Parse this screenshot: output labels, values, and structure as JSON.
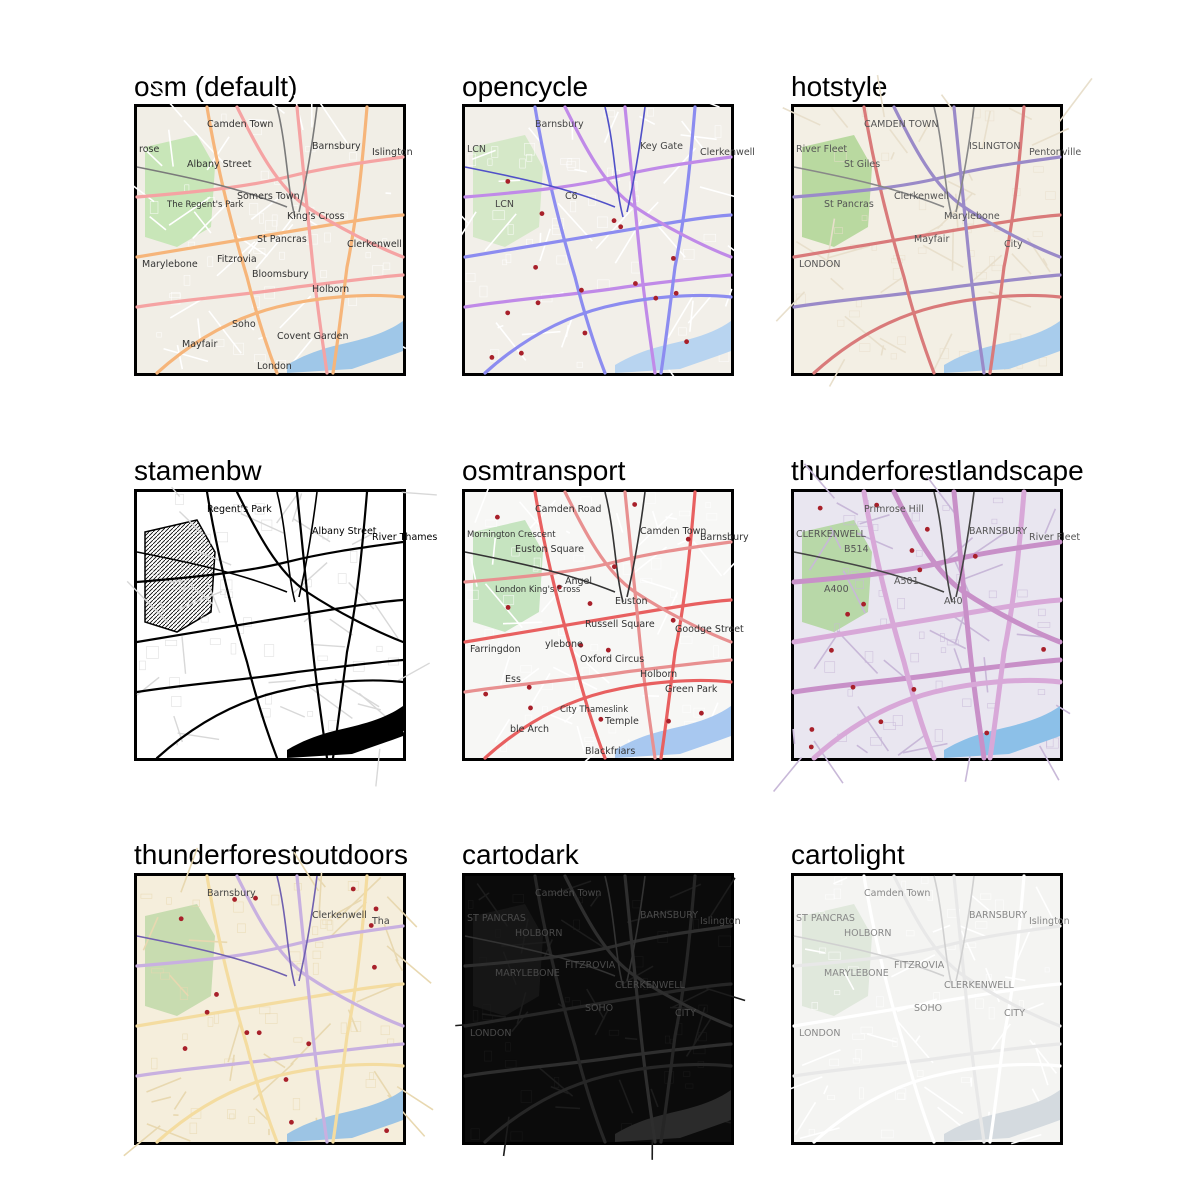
{
  "panels": [
    {
      "id": "osm",
      "title": "osm (default)",
      "bg": "#f1eee6",
      "minor": "#ffffff",
      "major": "#f6b57a",
      "major2": "#f5a3a3",
      "rail": "#7a7a7a",
      "park": "#c8e6b8",
      "water": "#9fc7e8",
      "label": "#333333",
      "labels": [
        "Camden Town",
        "Barnsbury",
        "Islington",
        "rose",
        "The Regent's Park",
        "Somers Town",
        "King's Cross",
        "Albany Street",
        "St Pancras",
        "Clerkenwell",
        "Marylebone",
        "Fitzrovia",
        "Bloomsbury",
        "Holborn",
        "Soho",
        "Mayfair",
        "Covent Garden",
        "London"
      ]
    },
    {
      "id": "opencycle",
      "title": "opencycle",
      "bg": "#f2efe9",
      "minor": "#ffffff",
      "major": "#8c8cf0",
      "major2": "#c08ae8",
      "rail": "#5050c8",
      "park": "#d5e8c8",
      "water": "#b8d4f0",
      "label": "#444444",
      "labels": [
        "Barnsbury",
        "Key Gate",
        "Clerkenwell",
        "LCN",
        "LCN",
        "C6"
      ]
    },
    {
      "id": "hotstyle",
      "title": "hotstyle",
      "bg": "#f3efe4",
      "minor": "#e8dfcc",
      "major": "#d97a7a",
      "major2": "#9a8ac8",
      "rail": "#888888",
      "park": "#b9d9a0",
      "water": "#a8ccec",
      "label": "#555555",
      "labels": [
        "CAMDEN TOWN",
        "ISLINGTON",
        "Pentonville",
        "River Fleet",
        "St Pancras",
        "Clerkenwell",
        "Marylebone",
        "St Giles",
        "Mayfair",
        "City",
        "LONDON"
      ]
    },
    {
      "id": "stamenbw",
      "title": "stamenbw",
      "bg": "#ffffff",
      "minor": "#d8d8d8",
      "major": "#000000",
      "major2": "#000000",
      "rail": "#000000",
      "park": "#ffffff",
      "water": "#000000",
      "label": "#000000",
      "labels": [
        "Regent's Park",
        "Albany Street",
        "River Thames"
      ]
    },
    {
      "id": "osmtransport",
      "title": "osmtransport",
      "bg": "#f7f7f5",
      "minor": "#ffffff",
      "major": "#e86060",
      "major2": "#e89090",
      "rail": "#333333",
      "park": "#c6e4c0",
      "water": "#a8c8f0",
      "label": "#333333",
      "labels": [
        "Camden Road",
        "Camden Town",
        "Barnsbury",
        "Mornington Crescent",
        "London King's Cross",
        "Angel",
        "Euston",
        "Euston Square",
        "Russell Square",
        "Goodge Street",
        "Farringdon",
        "ylebone",
        "Oxford Circus",
        "Holborn",
        "City Thameslink",
        "ble Arch",
        "Temple",
        "Blackfriars",
        "Green Park",
        "Ess"
      ]
    },
    {
      "id": "thunderforestlandscape",
      "title": "thunderforestlandscape",
      "bg": "#e9e6f0",
      "minor": "#c8b8d8",
      "major": "#d8a8d8",
      "major2": "#c890c8",
      "rail": "#444444",
      "park": "#b8d8a8",
      "water": "#8cc0e8",
      "label": "#555555",
      "labels": [
        "Primrose Hill",
        "BARNSBURY",
        "River Fleet",
        "CLERKENWELL",
        "A400",
        "A501",
        "A40",
        "B514"
      ]
    },
    {
      "id": "thunderforestoutdoors",
      "title": "thunderforestoutdoors",
      "bg": "#f5eedc",
      "minor": "#e8d8b0",
      "major": "#f4dca0",
      "major2": "#c8b0e0",
      "rail": "#7060b0",
      "park": "#c8dcb0",
      "water": "#9cc4e4",
      "label": "#444444",
      "labels": [
        "Barnsbury",
        "Clerkenwell",
        "Tha"
      ]
    },
    {
      "id": "cartodark",
      "title": "cartodark",
      "bg": "#0b0b0b",
      "minor": "#1c1c1c",
      "major": "#262626",
      "major2": "#2e2e2e",
      "rail": "#333333",
      "park": "#161616",
      "water": "#2b2b2b",
      "label": "#4a4a4a",
      "labels": [
        "Camden Town",
        "BARNSBURY",
        "Islington",
        "ST PANCRAS",
        "MARYLEBONE",
        "FITZROVIA",
        "CLERKENWELL",
        "HOLBORN",
        "SOHO",
        "CITY",
        "LONDON"
      ]
    },
    {
      "id": "cartolight",
      "title": "cartolight",
      "bg": "#f4f4f2",
      "minor": "#ffffff",
      "major": "#ffffff",
      "major2": "#e8e8e8",
      "rail": "#d0d0d0",
      "park": "#e0e8dc",
      "water": "#d4dadf",
      "label": "#888888",
      "labels": [
        "Camden Town",
        "BARNSBURY",
        "Islington",
        "ST PANCRAS",
        "MARYLEBONE",
        "FITZROVIA",
        "CLERKENWELL",
        "HOLBORN",
        "SOHO",
        "CITY",
        "LONDON"
      ]
    }
  ]
}
